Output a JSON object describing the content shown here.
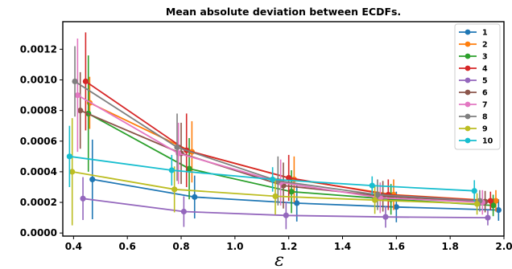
{
  "chart_data": {
    "type": "line",
    "title": "Mean absolute deviation between ECDFs.",
    "xlabel": "ε",
    "ylabel": "",
    "xlim": [
      0.36,
      2.0
    ],
    "ylim": [
      -2e-05,
      0.00138
    ],
    "xticks": [
      "0.4",
      "0.6",
      "0.8",
      "1.0",
      "1.2",
      "1.4",
      "1.6",
      "1.8",
      "2.0"
    ],
    "yticks": [
      "0.0000",
      "0.0002",
      "0.0004",
      "0.0006",
      "0.0008",
      "0.0010",
      "0.0012"
    ],
    "grid": false,
    "legend_position": "top-right",
    "series": [
      {
        "name": "1",
        "color": "#1f77b4",
        "x": [
          0.47,
          0.85,
          1.23,
          1.6,
          1.98
        ],
        "y": [
          0.00035,
          0.000235,
          0.000195,
          0.00017,
          0.00015
        ],
        "err": [
          0.00026,
          0.00014,
          0.00012,
          0.0001,
          7e-05
        ]
      },
      {
        "name": "2",
        "color": "#ff7f0e",
        "x": [
          0.46,
          0.84,
          1.22,
          1.59,
          1.97
        ],
        "y": [
          0.00085,
          0.00053,
          0.00035,
          0.00025,
          0.00021
        ],
        "err": [
          0.00017,
          0.0002,
          0.00015,
          0.0001,
          7e-05
        ]
      },
      {
        "name": "3",
        "color": "#2ca02c",
        "x": [
          0.455,
          0.83,
          1.21,
          1.58,
          1.96
        ],
        "y": [
          0.00078,
          0.00042,
          0.00027,
          0.00022,
          0.00018
        ],
        "err": [
          0.00038,
          0.0002,
          0.00014,
          0.0001,
          7e-05
        ]
      },
      {
        "name": "4",
        "color": "#d62728",
        "x": [
          0.445,
          0.82,
          1.2,
          1.57,
          1.95
        ],
        "y": [
          0.00099,
          0.00054,
          0.00036,
          0.00025,
          0.00021
        ],
        "err": [
          0.00032,
          0.00024,
          0.00015,
          0.0001,
          6e-05
        ]
      },
      {
        "name": "5",
        "color": "#9467bd",
        "x": [
          0.435,
          0.81,
          1.19,
          1.56,
          1.94
        ],
        "y": [
          0.000225,
          0.00014,
          0.000115,
          0.000105,
          0.0001
        ],
        "err": [
          0.00014,
          0.0001,
          9e-05,
          7e-05,
          5e-05
        ]
      },
      {
        "name": "6",
        "color": "#8c564b",
        "x": [
          0.425,
          0.8,
          1.18,
          1.55,
          1.93
        ],
        "y": [
          0.0008,
          0.00052,
          0.00031,
          0.00024,
          0.000205
        ],
        "err": [
          0.00025,
          0.0002,
          0.00015,
          0.0001,
          7e-05
        ]
      },
      {
        "name": "7",
        "color": "#e377c2",
        "x": [
          0.415,
          0.79,
          1.17,
          1.54,
          1.92
        ],
        "y": [
          0.0009,
          0.00052,
          0.00033,
          0.00023,
          0.0002
        ],
        "err": [
          0.00037,
          0.0002,
          0.00015,
          0.0001,
          8e-05
        ]
      },
      {
        "name": "8",
        "color": "#7f7f7f",
        "x": [
          0.405,
          0.785,
          1.16,
          1.53,
          1.91
        ],
        "y": [
          0.00099,
          0.00056,
          0.00034,
          0.00025,
          0.00021
        ],
        "err": [
          0.00023,
          0.00022,
          0.00016,
          0.0001,
          7e-05
        ]
      },
      {
        "name": "9",
        "color": "#bcbd22",
        "x": [
          0.395,
          0.775,
          1.15,
          1.52,
          1.9
        ],
        "y": [
          0.0004,
          0.000285,
          0.00024,
          0.000215,
          0.00019
        ],
        "err": [
          0.00035,
          0.00015,
          0.00012,
          9e-05,
          7e-05
        ]
      },
      {
        "name": "10",
        "color": "#17becf",
        "x": [
          0.385,
          0.765,
          1.14,
          1.51,
          1.89
        ],
        "y": [
          0.0005,
          0.00041,
          0.00035,
          0.00031,
          0.000275
        ],
        "err": [
          0.0002,
          0.0001,
          8e-05,
          6e-05,
          7e-05
        ]
      }
    ]
  }
}
